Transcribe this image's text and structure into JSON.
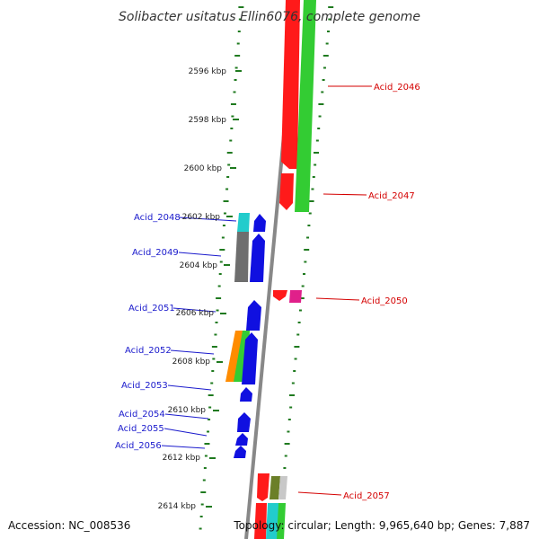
{
  "title": "Solibacter usitatus Ellin6076, complete genome",
  "accession": "Accession: NC_008536",
  "topology": "Topology: circular; Length: 9,965,640 bp; Genes: 7,887",
  "colors": {
    "forward_label": "#d40000",
    "reverse_label": "#1a1acc",
    "backbone": "#888888",
    "tick": "#1f7a1f",
    "red": "#ff1a1a",
    "green": "#33cc33",
    "blue": "#1010e0",
    "cyan": "#22cccc",
    "gray": "#6e6e6e",
    "orange": "#ff8c00",
    "magenta": "#e0208a",
    "olive": "#6b7f28",
    "silver": "#c8c8c8"
  },
  "scale_labels": [
    "2596 kbp",
    "2598 kbp",
    "2600 kbp",
    "2602 kbp",
    "2604 kbp",
    "2606 kbp",
    "2608 kbp",
    "2610 kbp",
    "2612 kbp",
    "2614 kbp"
  ],
  "forward_genes": [
    "Acid_2046",
    "Acid_2047",
    "Acid_2050",
    "Acid_2057"
  ],
  "reverse_genes": [
    "Acid_2048",
    "Acid_2049",
    "Acid_2051",
    "Acid_2052",
    "Acid_2053",
    "Acid_2054",
    "Acid_2055",
    "Acid_2056"
  ]
}
